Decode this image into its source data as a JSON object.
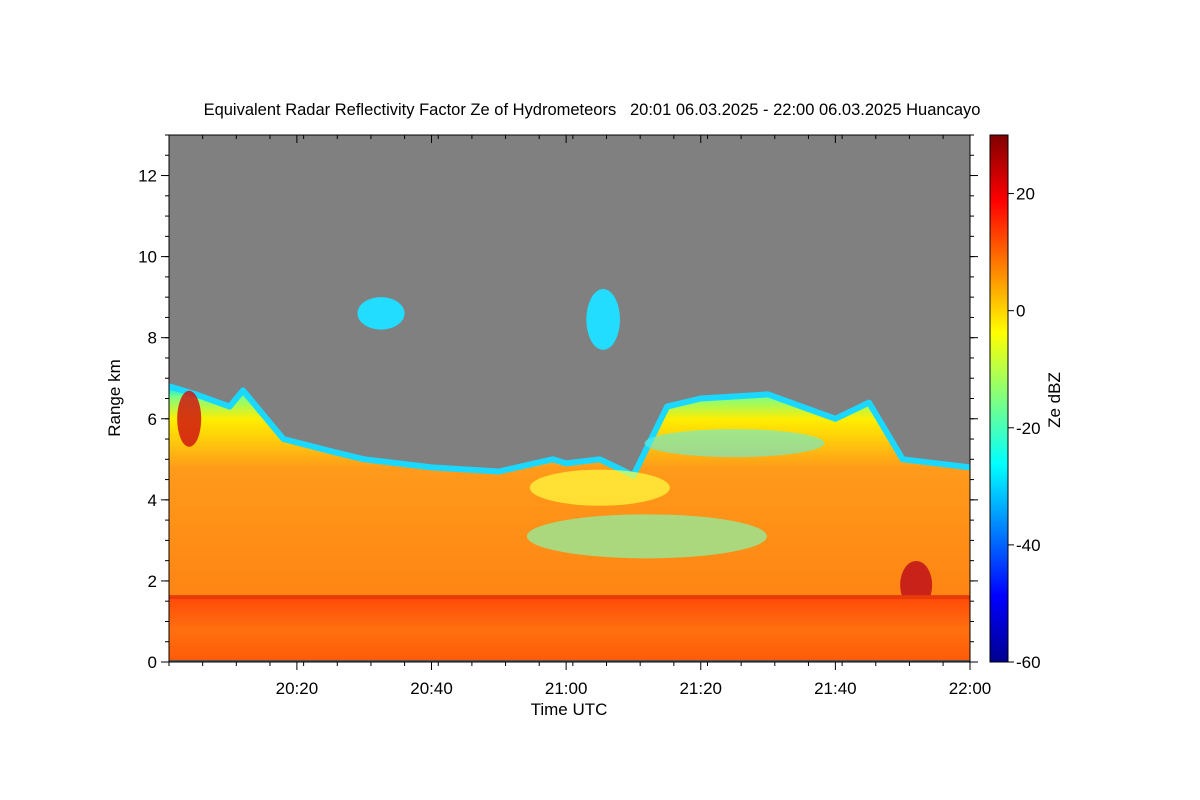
{
  "chart_data": {
    "type": "heatmap",
    "title": "Equivalent Radar Reflectivity Factor Ze of Hydrometeors   20:01 06.03.2025 - 22:00 06.03.2025 Huancayo",
    "xlabel": "Time UTC",
    "ylabel": "Range km",
    "x_range": [
      "20:01",
      "22:00"
    ],
    "x_ticks": [
      "20:20",
      "20:40",
      "21:00",
      "21:20",
      "21:40",
      "22:00"
    ],
    "ylim": [
      0,
      13
    ],
    "y_ticks": [
      0,
      2,
      4,
      6,
      8,
      10,
      12
    ],
    "background_color": "#808080",
    "colorbar": {
      "label": "Ze dBZ",
      "range": [
        -60,
        30
      ],
      "ticks": [
        -60,
        -40,
        -20,
        0,
        20
      ],
      "colormap": "jet"
    },
    "cloud_top_km": [
      {
        "time": "20:01",
        "top": 6.8
      },
      {
        "time": "20:05",
        "top": 6.6
      },
      {
        "time": "20:10",
        "top": 6.3
      },
      {
        "time": "20:12",
        "top": 6.7
      },
      {
        "time": "20:18",
        "top": 5.5
      },
      {
        "time": "20:25",
        "top": 5.2
      },
      {
        "time": "20:30",
        "top": 5.0
      },
      {
        "time": "20:40",
        "top": 4.8
      },
      {
        "time": "20:50",
        "top": 4.7
      },
      {
        "time": "20:58",
        "top": 5.0
      },
      {
        "time": "21:00",
        "top": 4.9
      },
      {
        "time": "21:05",
        "top": 5.0
      },
      {
        "time": "21:10",
        "top": 4.6
      },
      {
        "time": "21:15",
        "top": 6.3
      },
      {
        "time": "21:20",
        "top": 6.5
      },
      {
        "time": "21:30",
        "top": 6.6
      },
      {
        "time": "21:40",
        "top": 6.0
      },
      {
        "time": "21:45",
        "top": 6.4
      },
      {
        "time": "21:50",
        "top": 5.0
      },
      {
        "time": "22:00",
        "top": 4.8
      }
    ],
    "features": [
      {
        "desc": "cloud base / melting layer",
        "range_km": 1.6,
        "time_range": [
          "20:01",
          "22:00"
        ]
      },
      {
        "desc": "isolated echoes",
        "time_range": [
          "20:29",
          "20:36"
        ],
        "range_km": [
          8.2,
          9.0
        ],
        "ze_dbz": -22
      },
      {
        "desc": "isolated echoes",
        "time_range": [
          "21:03",
          "21:08"
        ],
        "range_km": [
          7.7,
          9.2
        ],
        "ze_dbz": -22
      }
    ]
  }
}
